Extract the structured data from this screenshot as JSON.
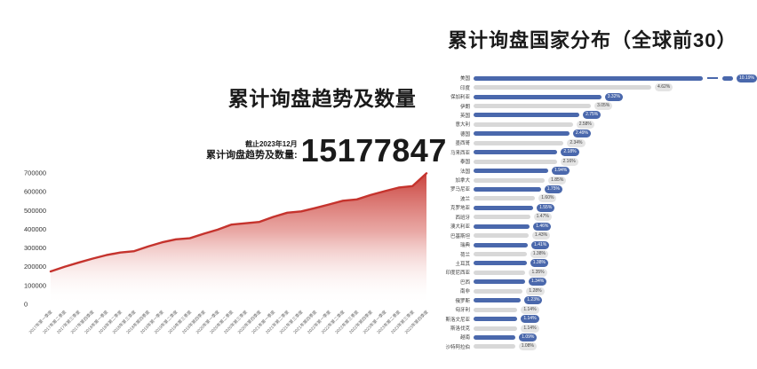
{
  "colors": {
    "area_line": "#c5332d",
    "bar_blue": "#4a68ac",
    "bar_gray": "#d8d8d8",
    "pill_gray_bg": "#e4e4e4",
    "text": "#1a1a1a",
    "tick_text": "#666666"
  },
  "left_chart": {
    "title": "累计询盘趋势及数量",
    "stat": {
      "as_of": "截止2023年12月",
      "label": "累计询盘趋势及数量:",
      "value": "15177847"
    }
  },
  "right_chart": {
    "title": "累计询盘国家分布（全球前30）"
  },
  "chart_data": [
    {
      "type": "area",
      "title": "累计询盘趋势及数量",
      "xlabel": "",
      "ylabel": "",
      "ylim": [
        0,
        700000
      ],
      "yticks": [
        0,
        100000,
        200000,
        300000,
        400000,
        500000,
        600000,
        700000
      ],
      "grid": false,
      "legend": "none",
      "line_color": "#c5332d",
      "fill_style": "vertical red-to-white gradient",
      "x": [
        "2017年第一季度",
        "2017年第二季度",
        "2017年第三季度",
        "2017年第四季度",
        "2018年第一季度",
        "2018年第二季度",
        "2018年第三季度",
        "2018年第四季度",
        "2019年第一季度",
        "2019年第二季度",
        "2019年第三季度",
        "2019年第四季度",
        "2020年第一季度",
        "2020年第二季度",
        "2020年第三季度",
        "2020年第四季度",
        "2021年第一季度",
        "2021年第二季度",
        "2021年第三季度",
        "2021年第四季度",
        "2022年第一季度",
        "2022年第二季度",
        "2022年第三季度",
        "2022年第四季度",
        "2023年第一季度",
        "2023年第二季度",
        "2023年第三季度",
        "2023年第四季度"
      ],
      "values": [
        175000,
        200000,
        222000,
        243000,
        262000,
        276000,
        283000,
        308000,
        330000,
        346000,
        352000,
        376000,
        398000,
        425000,
        432000,
        439000,
        466000,
        488000,
        495000,
        513000,
        532000,
        552000,
        559000,
        583000,
        603000,
        622000,
        630000,
        698000
      ]
    },
    {
      "type": "bar",
      "orientation": "horizontal",
      "title": "累计询盘国家分布（全球前30）",
      "grid": false,
      "legend": "none",
      "alternating_colors": [
        "#4a68ac",
        "#d8d8d8"
      ],
      "truncated_first_bar": true,
      "categories": [
        "美国",
        "印度",
        "保加利亚",
        "伊朗",
        "英国",
        "意大利",
        "德国",
        "墨西哥",
        "马来西亚",
        "泰国",
        "法国",
        "加拿大",
        "罗马尼亚",
        "波兰",
        "克罗地亚",
        "西班牙",
        "澳大利亚",
        "巴基斯坦",
        "瑞典",
        "荷兰",
        "土耳其",
        "印度尼西亚",
        "巴西",
        "南非",
        "俄罗斯",
        "匈牙利",
        "斯洛文尼亚",
        "斯洛伐克",
        "越南",
        "沙特阿拉伯"
      ],
      "values": [
        10.19,
        4.62,
        3.32,
        3.05,
        2.75,
        2.58,
        2.49,
        2.34,
        2.18,
        2.16,
        1.94,
        1.85,
        1.75,
        1.6,
        1.55,
        1.47,
        1.46,
        1.43,
        1.41,
        1.38,
        1.38,
        1.35,
        1.34,
        1.28,
        1.23,
        1.14,
        1.14,
        1.14,
        1.09,
        1.08
      ],
      "value_labels": [
        "10.19%",
        "4.62%",
        "3.32%",
        "3.05%",
        "2.75%",
        "2.58%",
        "2.49%",
        "2.34%",
        "2.18%",
        "2.16%",
        "1.94%",
        "1.85%",
        "1.75%",
        "1.60%",
        "1.55%",
        "1.47%",
        "1.46%",
        "1.43%",
        "1.41%",
        "1.38%",
        "1.38%",
        "1.35%",
        "1.34%",
        "1.28%",
        "1.23%",
        "1.14%",
        "1.14%",
        "1.14%",
        "1.09%",
        "1.08%"
      ]
    }
  ]
}
